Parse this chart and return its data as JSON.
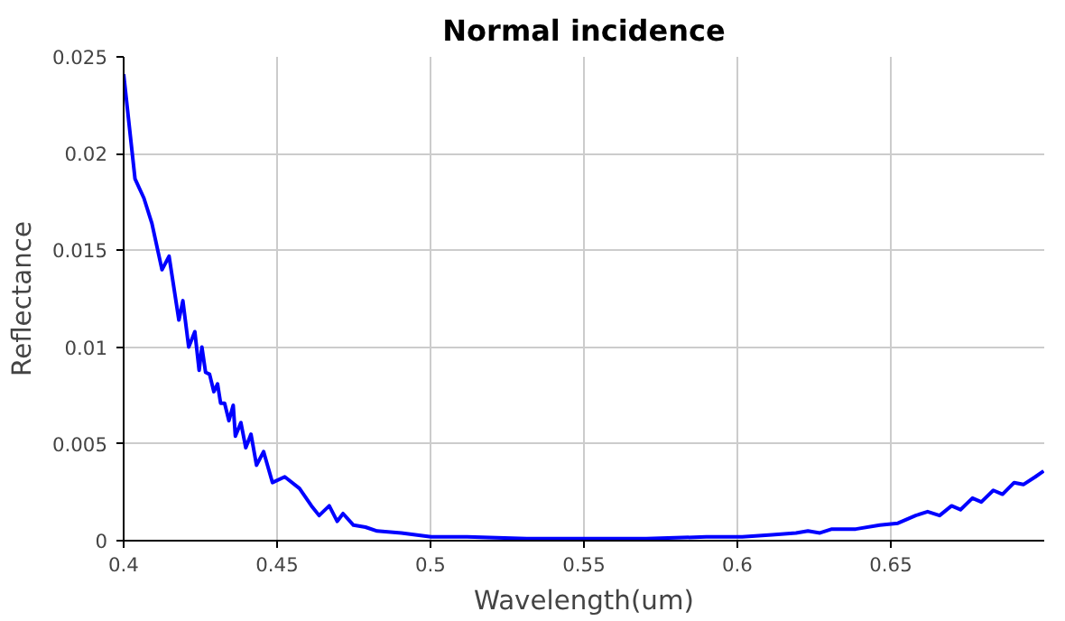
{
  "chart_data": {
    "type": "line",
    "title": "Normal incidence",
    "xlabel": "Wavelength(um)",
    "ylabel": "Reflectance",
    "xlim": [
      0.4,
      0.7
    ],
    "ylim": [
      0,
      0.025
    ],
    "xticks": [
      0.4,
      0.45,
      0.5,
      0.55,
      0.6,
      0.65
    ],
    "yticks": [
      0,
      0.005,
      0.01,
      0.015,
      0.02,
      0.025
    ],
    "grid": true,
    "marker": "none",
    "line_style": "solid",
    "series": [
      {
        "color": "#0000ff",
        "x": [
          0.4,
          0.4037,
          0.4066,
          0.4092,
          0.4125,
          0.4148,
          0.418,
          0.4193,
          0.4212,
          0.4232,
          0.4246,
          0.4255,
          0.4267,
          0.428,
          0.4294,
          0.4306,
          0.4316,
          0.4329,
          0.4343,
          0.4357,
          0.4364,
          0.4382,
          0.4398,
          0.4415,
          0.4433,
          0.4456,
          0.4485,
          0.4525,
          0.4573,
          0.4612,
          0.4637,
          0.467,
          0.4696,
          0.4715,
          0.4749,
          0.4788,
          0.4826,
          0.4905,
          0.5002,
          0.5119,
          0.5314,
          0.5509,
          0.5703,
          0.5899,
          0.6016,
          0.6113,
          0.6191,
          0.623,
          0.6269,
          0.6308,
          0.6386,
          0.6464,
          0.6523,
          0.6581,
          0.662,
          0.6659,
          0.6698,
          0.6727,
          0.6766,
          0.6795,
          0.6834,
          0.6864,
          0.6902,
          0.6932,
          0.6971,
          0.6998
        ],
        "values": [
          0.0241,
          0.0187,
          0.0177,
          0.0164,
          0.014,
          0.0147,
          0.0114,
          0.0124,
          0.01,
          0.0108,
          0.0088,
          0.01,
          0.0087,
          0.0086,
          0.0077,
          0.0081,
          0.0071,
          0.0071,
          0.0062,
          0.007,
          0.0054,
          0.0061,
          0.0048,
          0.0055,
          0.0039,
          0.0046,
          0.003,
          0.0033,
          0.0027,
          0.0018,
          0.0013,
          0.0018,
          0.001,
          0.0014,
          0.0008,
          0.0007,
          0.0005,
          0.0004,
          0.0002,
          0.0002,
          0.0001,
          0.0001,
          0.0001,
          0.0002,
          0.0002,
          0.0003,
          0.0004,
          0.0005,
          0.0004,
          0.0006,
          0.0006,
          0.0008,
          0.0009,
          0.0013,
          0.0015,
          0.0013,
          0.0018,
          0.0016,
          0.0022,
          0.002,
          0.0026,
          0.0024,
          0.003,
          0.0029,
          0.0033,
          0.0036
        ]
      }
    ]
  }
}
